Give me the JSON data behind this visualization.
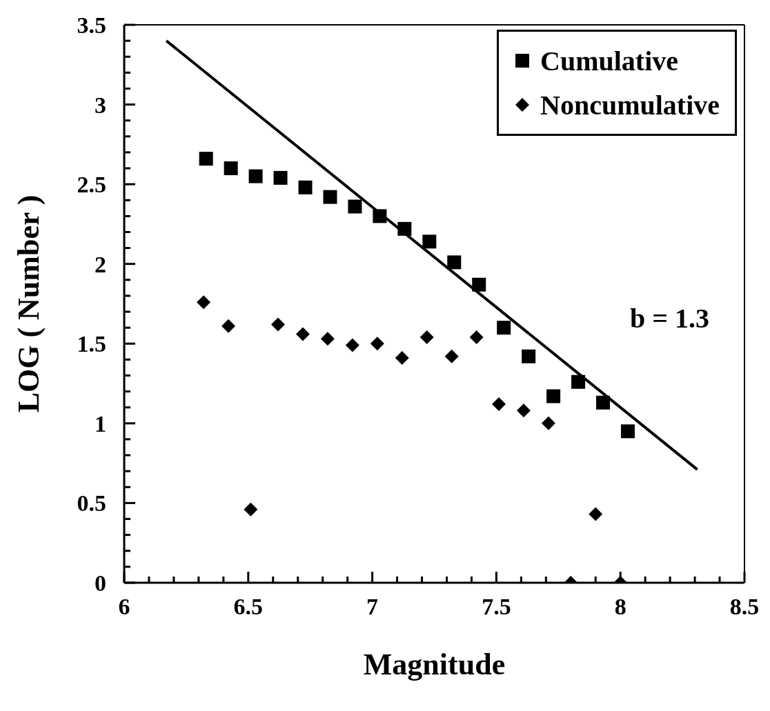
{
  "chart_data": {
    "type": "scatter",
    "xlabel": "Magnitude",
    "ylabel": "LOG ( Number )",
    "xlim": [
      6,
      8.5
    ],
    "xticks": [
      6,
      {
        "value": 6.1,
        "label": null
      },
      {
        "value": 6.2,
        "label": null
      },
      {
        "value": 6.3,
        "label": null
      },
      {
        "value": 6.4,
        "label": null
      },
      6.5,
      {
        "value": 6.6,
        "label": null
      },
      {
        "value": 6.7,
        "label": null
      },
      {
        "value": 6.8,
        "label": null
      },
      {
        "value": 6.9,
        "label": null
      },
      7,
      {
        "value": 7.1,
        "label": null
      },
      {
        "value": 7.2,
        "label": null
      },
      {
        "value": 7.3,
        "label": null
      },
      {
        "value": 7.4,
        "label": null
      },
      7.5,
      {
        "value": 7.6,
        "label": null
      },
      {
        "value": 7.7,
        "label": null
      },
      {
        "value": 7.8,
        "label": null
      },
      {
        "value": 7.9,
        "label": null
      },
      8,
      {
        "value": 8.1,
        "label": null
      },
      {
        "value": 8.2,
        "label": null
      },
      {
        "value": 8.3,
        "label": null
      },
      {
        "value": 8.4,
        "label": null
      },
      8.5
    ],
    "ylim": [
      0,
      3.5
    ],
    "yticks": [
      0,
      {
        "value": 0.1,
        "label": null
      },
      {
        "value": 0.2,
        "label": null
      },
      {
        "value": 0.3,
        "label": null
      },
      {
        "value": 0.4,
        "label": null
      },
      0.5,
      {
        "value": 0.6,
        "label": null
      },
      {
        "value": 0.7,
        "label": null
      },
      {
        "value": 0.8,
        "label": null
      },
      {
        "value": 0.9,
        "label": null
      },
      1,
      {
        "value": 1.1,
        "label": null
      },
      {
        "value": 1.2,
        "label": null
      },
      {
        "value": 1.3,
        "label": null
      },
      {
        "value": 1.4,
        "label": null
      },
      1.5,
      {
        "value": 1.6,
        "label": null
      },
      {
        "value": 1.7,
        "label": null
      },
      {
        "value": 1.8,
        "label": null
      },
      {
        "value": 1.9,
        "label": null
      },
      2,
      {
        "value": 2.1,
        "label": null
      },
      {
        "value": 2.2,
        "label": null
      },
      {
        "value": 2.3,
        "label": null
      },
      {
        "value": 2.4,
        "label": null
      },
      2.5,
      {
        "value": 2.6,
        "label": null
      },
      {
        "value": 2.7,
        "label": null
      },
      {
        "value": 2.8,
        "label": null
      },
      {
        "value": 2.9,
        "label": null
      },
      3,
      {
        "value": 3.1,
        "label": null
      },
      {
        "value": 3.2,
        "label": null
      },
      {
        "value": 3.3,
        "label": null
      },
      {
        "value": 3.4,
        "label": null
      },
      3.5
    ],
    "grid": false,
    "legend": "top right",
    "annotations": [
      "b = 1.3"
    ],
    "series": [
      {
        "name": "Cumulative",
        "type": "scatter",
        "marker": "square",
        "color": "#000000",
        "x": [
          6.33,
          6.43,
          6.53,
          6.63,
          6.73,
          6.83,
          6.93,
          7.03,
          7.13,
          7.23,
          7.33,
          7.43,
          7.53,
          7.63,
          7.73,
          7.83,
          7.93,
          8.03
        ],
        "values": [
          2.66,
          2.6,
          2.55,
          2.54,
          2.48,
          2.42,
          2.36,
          2.3,
          2.22,
          2.14,
          2.01,
          1.87,
          1.6,
          1.42,
          1.17,
          1.26,
          1.13,
          0.95
        ]
      },
      {
        "name": "Noncumulative",
        "type": "scatter",
        "marker": "diamond",
        "color": "#000000",
        "x": [
          6.32,
          6.42,
          6.51,
          6.62,
          6.72,
          6.82,
          6.92,
          7.02,
          7.12,
          7.22,
          7.32,
          7.42,
          7.51,
          7.61,
          7.71,
          7.8,
          7.9,
          8.0
        ],
        "values": [
          1.76,
          1.61,
          0.46,
          1.62,
          1.56,
          1.53,
          1.49,
          1.5,
          1.41,
          1.54,
          1.42,
          1.54,
          1.12,
          1.08,
          1.0,
          0,
          0.43,
          0
        ]
      },
      {
        "type": "line",
        "color": "#000000",
        "x": [
          6.17,
          8.31
        ],
        "values": [
          3.4,
          0.71
        ]
      }
    ]
  }
}
